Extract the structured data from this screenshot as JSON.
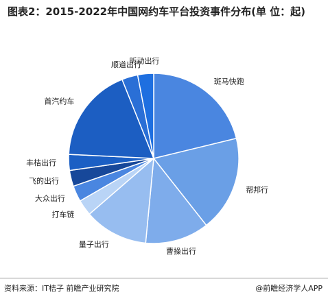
{
  "chart_data": {
    "type": "pie",
    "title": "图表2：2015-2022年中国网约车平台投资事件分布(单 位：起)",
    "categories": [
      "斑马快跑",
      "帮邦行",
      "曹操出行",
      "量子出行",
      "打车链",
      "大众出行",
      "飞的出行",
      "丰桔出行",
      "首汽约车",
      "顺道出行",
      "昕动出行"
    ],
    "values": [
      7,
      6,
      4,
      4,
      1,
      1,
      1,
      1,
      6,
      1,
      1
    ],
    "colors": [
      "#4a86e0",
      "#6a9fe6",
      "#7eaceb",
      "#97bdf0",
      "#b9d4f6",
      "#4a86e0",
      "#17489a",
      "#1b5fc4",
      "#1c5ec2",
      "#2a6fd6",
      "#1e6fe0"
    ],
    "source": "资料来源：IT桔子 前瞻产业研究院",
    "credit": "@前瞻经济学人APP"
  }
}
